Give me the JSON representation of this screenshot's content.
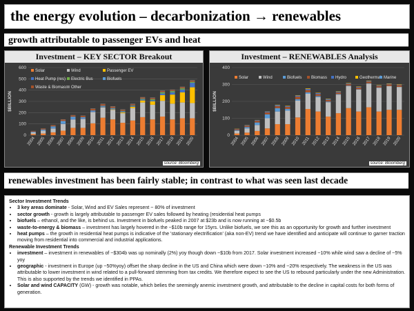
{
  "title": "the energy evolution – decarbonization → renewables",
  "subtitle": "growth attributable to passenger EVs and heat",
  "banner2": "renewables investment has been fairly stable; in contrast to what was seen last decade",
  "colors": {
    "Solar": "#ed7d31",
    "Wind": "#bfbfbf",
    "Passenger EV": "#ffc000",
    "Heat Pump (res)": "#4472c4",
    "Electric Bus": "#70ad47",
    "Biofuels": "#5b9bd5",
    "Waste & Biomass": "#a5522a",
    "Other": "#7f7f7f",
    "Biomass": "#a5522a",
    "Hydro": "#4472c4",
    "Geothermal": "#ffc000",
    "Marine": "#5b9bd5"
  },
  "chart_data": [
    {
      "type": "bar",
      "stacked": true,
      "title": "Investment – KEY SECTOR Breakout",
      "ylabel": "$BILLION",
      "ylim": [
        0,
        600
      ],
      "yticks": [
        0,
        100,
        200,
        300,
        400,
        500,
        600
      ],
      "source": "source: Bloomberg",
      "legend_position": "top-left",
      "categories": [
        "2004",
        "2005",
        "2006",
        "2007",
        "2008",
        "2009",
        "2010",
        "2011",
        "2012",
        "2013",
        "2014",
        "2015",
        "2016",
        "2017",
        "2018",
        "2019",
        "2020"
      ],
      "series": [
        {
          "name": "Solar",
          "values": [
            10,
            15,
            25,
            40,
            65,
            65,
            105,
            155,
            140,
            110,
            130,
            160,
            140,
            165,
            140,
            150,
            150
          ]
        },
        {
          "name": "Wind",
          "values": [
            15,
            25,
            35,
            60,
            75,
            80,
            100,
            90,
            85,
            85,
            110,
            130,
            130,
            140,
            140,
            140,
            135
          ]
        },
        {
          "name": "Passenger EV",
          "values": [
            0,
            0,
            0,
            0,
            0,
            0,
            1,
            2,
            4,
            8,
            12,
            18,
            30,
            50,
            80,
            90,
            140
          ]
        },
        {
          "name": "Heat Pump (res)",
          "values": [
            2,
            2,
            3,
            3,
            4,
            4,
            5,
            5,
            5,
            6,
            7,
            8,
            10,
            15,
            20,
            25,
            40
          ]
        },
        {
          "name": "Electric Bus",
          "values": [
            0,
            0,
            0,
            0,
            0,
            0,
            0,
            1,
            1,
            2,
            3,
            5,
            8,
            10,
            10,
            10,
            8
          ]
        },
        {
          "name": "Biofuels",
          "values": [
            4,
            8,
            15,
            23,
            20,
            10,
            8,
            8,
            6,
            4,
            3,
            3,
            2,
            2,
            2,
            1,
            1
          ]
        },
        {
          "name": "Waste & Biomass",
          "values": [
            6,
            8,
            10,
            12,
            12,
            12,
            15,
            14,
            12,
            10,
            10,
            10,
            10,
            10,
            9,
            10,
            10
          ]
        },
        {
          "name": "Other",
          "values": [
            1,
            2,
            2,
            3,
            3,
            3,
            4,
            4,
            4,
            4,
            4,
            4,
            4,
            4,
            4,
            4,
            4
          ]
        }
      ]
    },
    {
      "type": "bar",
      "stacked": true,
      "title": "Investment – RENEWABLES Analysis",
      "ylabel": "$BILLION",
      "ylim": [
        0,
        400
      ],
      "yticks": [
        0,
        100,
        200,
        300,
        400
      ],
      "source": "source: Bloomberg",
      "legend_position": "top",
      "categories": [
        "2004",
        "2005",
        "2006",
        "2007",
        "2008",
        "2009",
        "2010",
        "2011",
        "2012",
        "2013",
        "2014",
        "2015",
        "2016",
        "2017",
        "2018",
        "2019",
        "2020"
      ],
      "series": [
        {
          "name": "Solar",
          "values": [
            10,
            15,
            25,
            40,
            65,
            65,
            105,
            155,
            140,
            110,
            130,
            160,
            140,
            165,
            140,
            150,
            150
          ]
        },
        {
          "name": "Wind",
          "values": [
            15,
            25,
            35,
            60,
            75,
            80,
            100,
            90,
            85,
            85,
            110,
            130,
            130,
            140,
            140,
            140,
            135
          ]
        },
        {
          "name": "Biofuels",
          "values": [
            4,
            8,
            15,
            23,
            20,
            10,
            8,
            8,
            6,
            4,
            3,
            3,
            2,
            2,
            2,
            1,
            1
          ]
        },
        {
          "name": "Biomass",
          "values": [
            6,
            8,
            10,
            12,
            12,
            12,
            15,
            14,
            12,
            10,
            10,
            10,
            10,
            10,
            9,
            10,
            10
          ]
        },
        {
          "name": "Hydro",
          "values": [
            2,
            3,
            4,
            5,
            6,
            5,
            6,
            7,
            6,
            5,
            5,
            4,
            4,
            4,
            3,
            3,
            3
          ]
        },
        {
          "name": "Geothermal",
          "values": [
            1,
            1,
            1,
            1,
            2,
            2,
            2,
            3,
            2,
            2,
            2,
            2,
            2,
            2,
            2,
            2,
            2
          ]
        },
        {
          "name": "Marine",
          "values": [
            0,
            0,
            0,
            0,
            0,
            0,
            0,
            0,
            0,
            0,
            0,
            0,
            0,
            0,
            0,
            0,
            0
          ]
        }
      ]
    }
  ],
  "text": {
    "sector_head": "Sector Investment Trends",
    "sector_items": [
      {
        "bold": "3 key areas dominate",
        "rest": " - Solar, Wind and EV Sales represent ~ 80% of investment"
      },
      {
        "bold": "sector growth",
        "rest": " - growth is largely attributable to passenger EV sales followed by heating (residential heat pumps"
      },
      {
        "bold": "biofuels",
        "rest": " – ethanol, and the like, is behind us. Investment in biofuels peaked in 2007 at $23b and is now running at ~$0.5b"
      },
      {
        "bold": "waste-to-energy & biomass",
        "rest": " – investment has largely hovered in the ~$10b range for 15yrs. Unlike biofuels, we see this as an opportunity for growth and further investment"
      },
      {
        "bold": "heat pumps",
        "rest": " – the growth in residential heat pumps is indicative of the 'stationary electrification' (aka non-EV) trend we have identified and anticipate will continue to garner traction moving from residential into commercial and industrial applications."
      }
    ],
    "renew_head": "Renewable Investment Trends",
    "renew_items": [
      {
        "bold": "investment",
        "rest": " – investment in renewables of ~$304b was up nominally (2%) yoy though down ~$10b from 2017. Solar investment increased ~10% while wind saw a decline of ~5% yoy"
      },
      {
        "bold": "geographic",
        "rest": " - investment in Europe (up ~50%yoy) offset the sharp decline in the US and China which were down ~10% and ~20% respectively. The weakness in the US was attributable to lower investment in wind related to a pull-forward stemming from tax credits. We therefore expect to see the US to rebound particularly under the new Administration. This is also supported by the trends we identified in PPAs."
      },
      {
        "bold": "Solar and wind CAPACITY",
        "rest": " (GW) - growth was notable, which  belies the seemingly anemic investment growth, and attributable to the decline in capital costs for both forms of generation."
      }
    ]
  }
}
